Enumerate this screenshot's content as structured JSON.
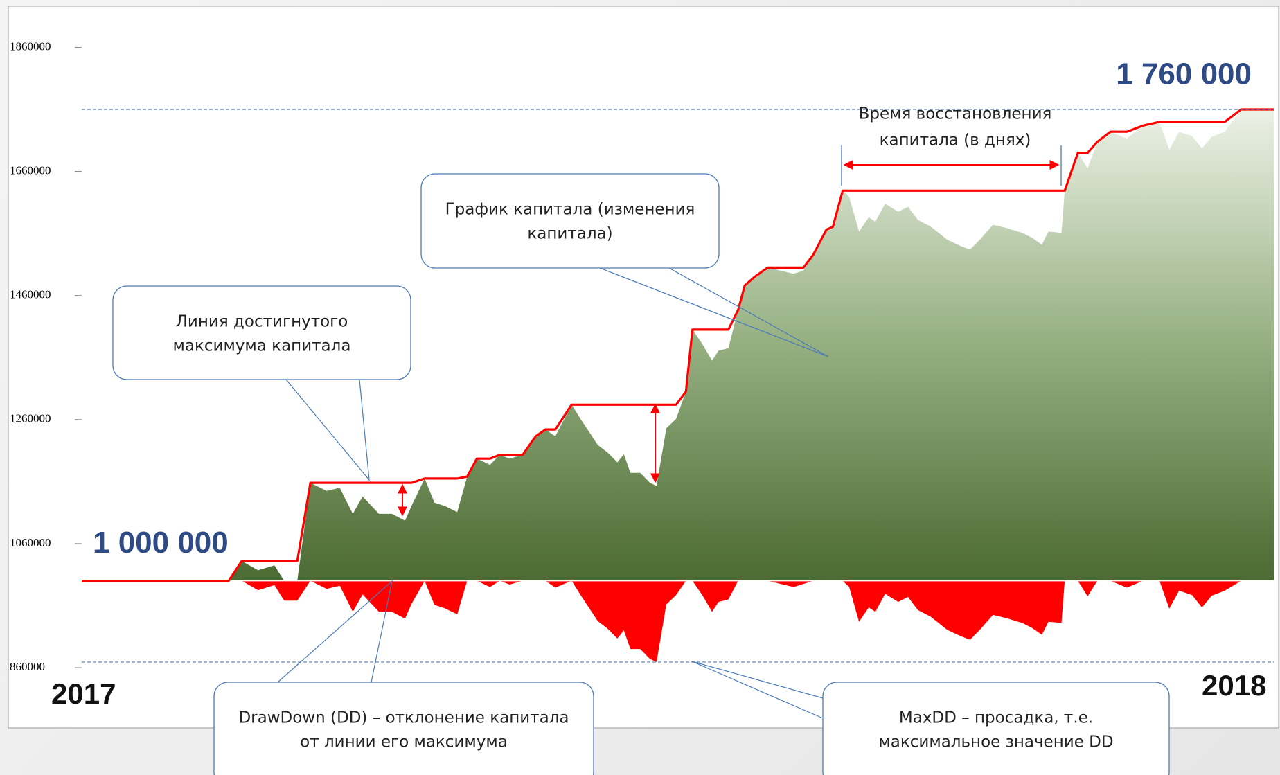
{
  "chart_data": {
    "type": "area",
    "x": [
      0,
      45,
      49,
      54,
      59,
      62,
      66,
      70,
      75,
      79,
      83,
      86,
      91,
      95,
      99,
      101,
      105,
      108,
      111,
      115,
      118,
      121,
      125,
      128,
      131,
      135,
      139,
      142,
      145,
      150,
      153,
      158,
      161,
      164,
      166,
      168,
      171,
      174,
      176,
      179,
      182,
      185,
      187,
      190,
      193,
      195,
      198,
      201,
      203,
      206,
      210,
      214,
      218,
      221,
      224,
      228,
      230,
      233,
      235,
      238,
      241,
      243,
      246,
      250,
      253,
      256,
      260,
      265,
      269,
      272,
      275,
      279,
      283,
      288,
      291,
      294,
      296,
      300,
      301,
      305,
      308,
      311,
      315,
      320,
      325,
      330,
      333,
      336,
      340,
      343,
      346,
      350,
      355,
      365
    ],
    "xlim": [
      0,
      365
    ],
    "x_start_label": "2017",
    "x_end_label": "2018",
    "series": [
      {
        "role": "equity",
        "color": "#4e6b35",
        "values": [
          1000000,
          1000000,
          1032000,
          1017000,
          1025000,
          1000000,
          1000000,
          1158000,
          1145000,
          1150000,
          1108000,
          1136000,
          1108000,
          1108000,
          1097000,
          1121000,
          1165000,
          1126000,
          1121000,
          1111000,
          1168000,
          1197000,
          1187000,
          1203000,
          1197000,
          1203000,
          1233000,
          1244000,
          1233000,
          1284000,
          1259000,
          1219000,
          1207000,
          1191000,
          1204000,
          1174000,
          1174000,
          1158000,
          1153000,
          1246000,
          1261000,
          1305000,
          1405000,
          1382000,
          1355000,
          1371000,
          1375000,
          1437000,
          1476000,
          1490000,
          1505000,
          1500000,
          1495000,
          1500000,
          1526000,
          1566000,
          1571000,
          1629000,
          1619000,
          1563000,
          1586000,
          1579000,
          1608000,
          1595000,
          1603000,
          1582000,
          1571000,
          1550000,
          1540000,
          1534000,
          1550000,
          1574000,
          1569000,
          1561000,
          1553000,
          1542000,
          1563000,
          1561000,
          1629000,
          1690000,
          1665000,
          1708000,
          1724000,
          1713000,
          1734000,
          1740000,
          1695000,
          1724000,
          1717000,
          1697000,
          1716000,
          1724000,
          1760000,
          1760000
        ]
      },
      {
        "role": "max",
        "color": "#ff0000",
        "values": [
          1000000,
          1000000,
          1032000,
          1032000,
          1032000,
          1032000,
          1032000,
          1158000,
          1158000,
          1158000,
          1158000,
          1158000,
          1158000,
          1158000,
          1158000,
          1158000,
          1165000,
          1165000,
          1165000,
          1165000,
          1168000,
          1197000,
          1197000,
          1203000,
          1203000,
          1203000,
          1233000,
          1244000,
          1244000,
          1284000,
          1284000,
          1284000,
          1284000,
          1284000,
          1284000,
          1284000,
          1284000,
          1284000,
          1284000,
          1284000,
          1284000,
          1305000,
          1405000,
          1405000,
          1405000,
          1405000,
          1405000,
          1437000,
          1476000,
          1490000,
          1505000,
          1505000,
          1505000,
          1505000,
          1526000,
          1566000,
          1571000,
          1629000,
          1629000,
          1629000,
          1629000,
          1629000,
          1629000,
          1629000,
          1629000,
          1629000,
          1629000,
          1629000,
          1629000,
          1629000,
          1629000,
          1629000,
          1629000,
          1629000,
          1629000,
          1629000,
          1629000,
          1629000,
          1629000,
          1690000,
          1690000,
          1708000,
          1724000,
          1724000,
          1734000,
          1740000,
          1740000,
          1740000,
          1740000,
          1740000,
          1740000,
          1740000,
          1760000,
          1760000
        ]
      },
      {
        "role": "drawdown",
        "color": "#ff0000",
        "values": [
          1000000,
          1000000,
          1000000,
          985000,
          993000,
          968000,
          968000,
          1000000,
          987000,
          992000,
          950000,
          978000,
          950000,
          950000,
          939000,
          963000,
          1000000,
          961000,
          956000,
          946000,
          1000000,
          1000000,
          990000,
          1000000,
          994000,
          1000000,
          1000000,
          1000000,
          989000,
          1000000,
          975000,
          935000,
          923000,
          907000,
          920000,
          890000,
          890000,
          874000,
          869000,
          962000,
          977000,
          1000000,
          1000000,
          977000,
          950000,
          966000,
          970000,
          1000000,
          1000000,
          1000000,
          1000000,
          995000,
          990000,
          995000,
          1000000,
          1000000,
          1000000,
          1000000,
          990000,
          934000,
          957000,
          950000,
          979000,
          966000,
          974000,
          953000,
          942000,
          921000,
          911000,
          905000,
          921000,
          945000,
          940000,
          932000,
          924000,
          913000,
          934000,
          932000,
          1000000,
          1000000,
          975000,
          1000000,
          1000000,
          989000,
          1000000,
          1000000,
          955000,
          984000,
          977000,
          957000,
          976000,
          984000,
          1000000,
          1000000
        ]
      }
    ],
    "ylim": [
      860000,
      1920000
    ],
    "yticks": [
      860000,
      1060000,
      1260000,
      1460000,
      1660000,
      1860000
    ],
    "start_level": {
      "value": 1000000,
      "label": "1 000 000"
    },
    "peak_level": {
      "value": 1760000,
      "label": "1 760 000"
    },
    "maxdd_level": {
      "value": 869000
    },
    "annotations": {
      "max_line": [
        "Линия достигнутого",
        "максимума капитала"
      ],
      "equity": [
        "График капитала (изменения",
        "капитала)"
      ],
      "drawdown": [
        "DrawDown (DD) – отклонение капитала",
        "от линии его максимума"
      ],
      "maxdd": [
        "MaxDD – просадка, т.е.",
        "максимальное значение DD"
      ],
      "recovery": [
        "Время восстановления",
        "капитала (в днях)"
      ]
    }
  }
}
